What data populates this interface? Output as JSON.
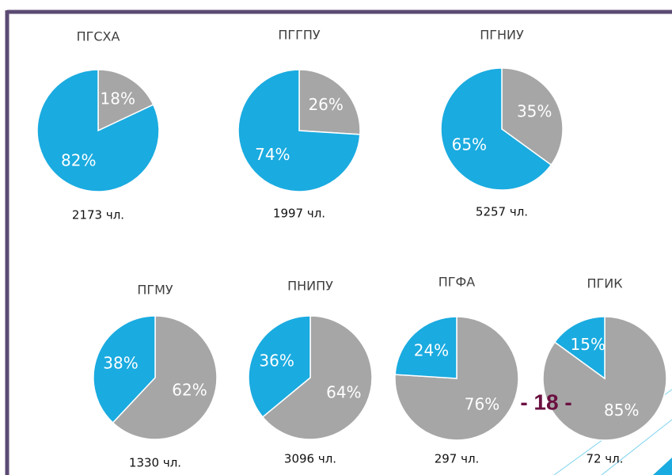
{
  "chart_data": [
    {
      "type": "pie",
      "title": "ПГСХА",
      "values": [
        18,
        82
      ],
      "value_labels": [
        "18%",
        "82%"
      ],
      "colors": [
        "#a6a6a6",
        "#1aabe0"
      ],
      "subtitle": "2173 чл."
    },
    {
      "type": "pie",
      "title": "ПГГПУ",
      "values": [
        26,
        74
      ],
      "value_labels": [
        "26%",
        "74%"
      ],
      "colors": [
        "#a6a6a6",
        "#1aabe0"
      ],
      "subtitle": "1997 чл."
    },
    {
      "type": "pie",
      "title": "ПГНИУ",
      "values": [
        35,
        65
      ],
      "value_labels": [
        "35%",
        "65%"
      ],
      "colors": [
        "#a6a6a6",
        "#1aabe0"
      ],
      "subtitle": "5257 чл."
    },
    {
      "type": "pie",
      "title": "ПГМУ",
      "values": [
        62,
        38
      ],
      "value_labels": [
        "62%",
        "38%"
      ],
      "colors": [
        "#a6a6a6",
        "#1aabe0"
      ],
      "subtitle": "1330 чл."
    },
    {
      "type": "pie",
      "title": "ПНИПУ",
      "values": [
        64,
        36
      ],
      "value_labels": [
        "64%",
        "36%"
      ],
      "colors": [
        "#a6a6a6",
        "#1aabe0"
      ],
      "subtitle": "3096 чл."
    },
    {
      "type": "pie",
      "title": "ПГФА",
      "values": [
        76,
        24
      ],
      "value_labels": [
        "76%",
        "24%"
      ],
      "colors": [
        "#a6a6a6",
        "#1aabe0"
      ],
      "subtitle": "297 чл."
    },
    {
      "type": "pie",
      "title": "ПГИК",
      "values": [
        85,
        15
      ],
      "value_labels": [
        "85%",
        "15%"
      ],
      "colors": [
        "#a6a6a6",
        "#1aabe0"
      ],
      "subtitle": "72 чл."
    }
  ],
  "page_number": "- 18 -"
}
